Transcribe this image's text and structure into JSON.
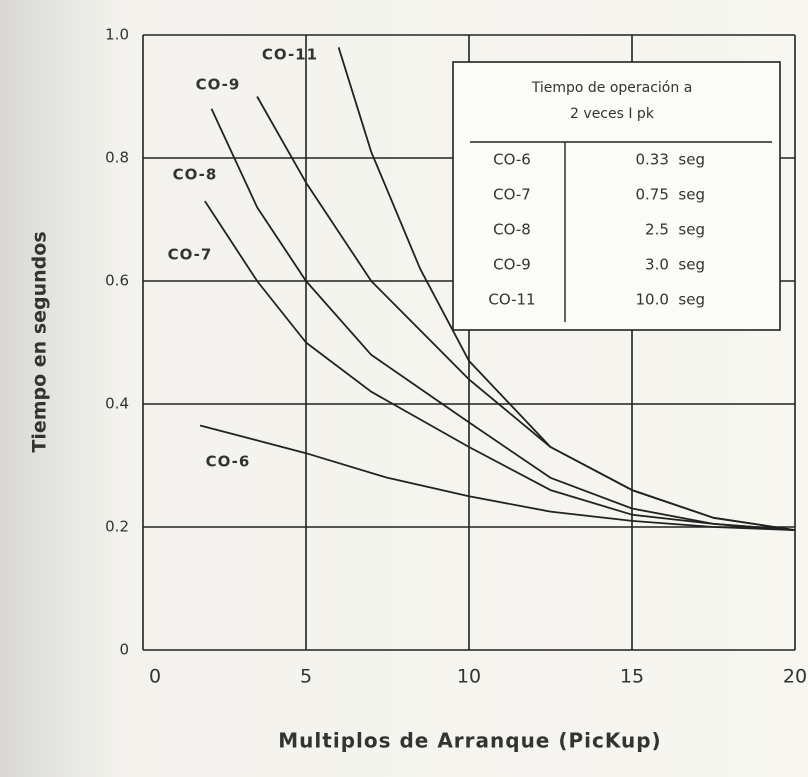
{
  "chart_data": {
    "type": "line",
    "xlabel": "Multiplos de Arranque (PicKup)",
    "ylabel": "Tiempo en segundos",
    "xlim": [
      0,
      20
    ],
    "ylim": [
      0,
      1
    ],
    "xticks": [
      0,
      5,
      10,
      15,
      20
    ],
    "yticks": [
      0,
      0.2,
      0.4,
      0.6,
      0.8,
      {
        "value": 1,
        "label": "1.0"
      }
    ],
    "grid": true,
    "series": [
      {
        "name": "CO-6",
        "color": "#222222",
        "x": [
          1.75,
          5,
          7.5,
          10,
          12.5,
          15,
          17.5,
          20
        ],
        "values": [
          0.365,
          0.32,
          0.28,
          0.25,
          0.225,
          0.21,
          0.2,
          0.195
        ]
      },
      {
        "name": "CO-7",
        "color": "#222222",
        "x": [
          1.9,
          3.5,
          5,
          7,
          10,
          12.5,
          15,
          17.5,
          20
        ],
        "values": [
          0.73,
          0.6,
          0.5,
          0.42,
          0.33,
          0.26,
          0.22,
          0.205,
          0.195
        ]
      },
      {
        "name": "CO-8",
        "color": "#222222",
        "x": [
          2.1,
          3.5,
          5,
          7,
          10,
          12.5,
          15,
          17.5,
          20
        ],
        "values": [
          0.88,
          0.72,
          0.6,
          0.48,
          0.37,
          0.28,
          0.23,
          0.205,
          0.195
        ]
      },
      {
        "name": "CO-9",
        "color": "#222222",
        "x": [
          3.5,
          5,
          7,
          10,
          12.5,
          15,
          17.5,
          20
        ],
        "values": [
          0.9,
          0.76,
          0.6,
          0.44,
          0.33,
          0.26,
          0.215,
          0.195
        ]
      },
      {
        "name": "CO-11",
        "color": "#222222",
        "x": [
          6,
          7,
          8.5,
          10,
          12.5,
          15,
          17.5,
          20
        ],
        "values": [
          0.98,
          0.81,
          0.62,
          0.47,
          0.33,
          0.26,
          0.215,
          0.195
        ]
      }
    ],
    "table": {
      "title": [
        "Tiempo de operación a",
        "2 veces  I pk"
      ],
      "rows": [
        [
          "CO-6",
          "0.33  seg"
        ],
        [
          "CO-7",
          "0.75  seg"
        ],
        [
          "CO-8",
          "2.5  seg"
        ],
        [
          "CO-9",
          "3.0  seg"
        ],
        [
          "CO-11",
          "10.0  seg"
        ]
      ]
    }
  }
}
